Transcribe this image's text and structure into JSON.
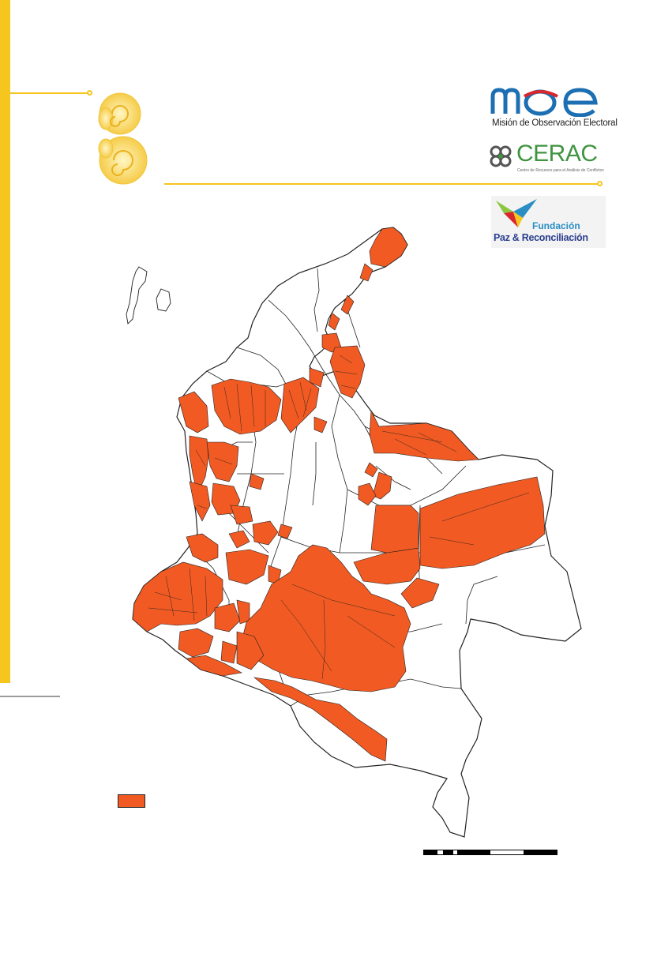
{
  "logos": {
    "moe": {
      "text": "moe",
      "subtitle": "Misión de Observación Electoral"
    },
    "cerac": {
      "text": "CERAC",
      "subtitle": "Centro de Recursos para el Análisis de Conflictos"
    },
    "fundacion": {
      "line1": "Fundación",
      "line2": "Paz & Reconciliación"
    }
  },
  "map": {
    "highlight_color": "#f15a22",
    "base_color": "#ffffff",
    "outline_color": "#222222",
    "accent_color": "#f6c51e"
  },
  "legend": {
    "label": ""
  },
  "scale_bar": {
    "segments": [
      "black",
      "white",
      "black",
      "white",
      "black",
      "black",
      "white",
      "black",
      "black"
    ]
  }
}
